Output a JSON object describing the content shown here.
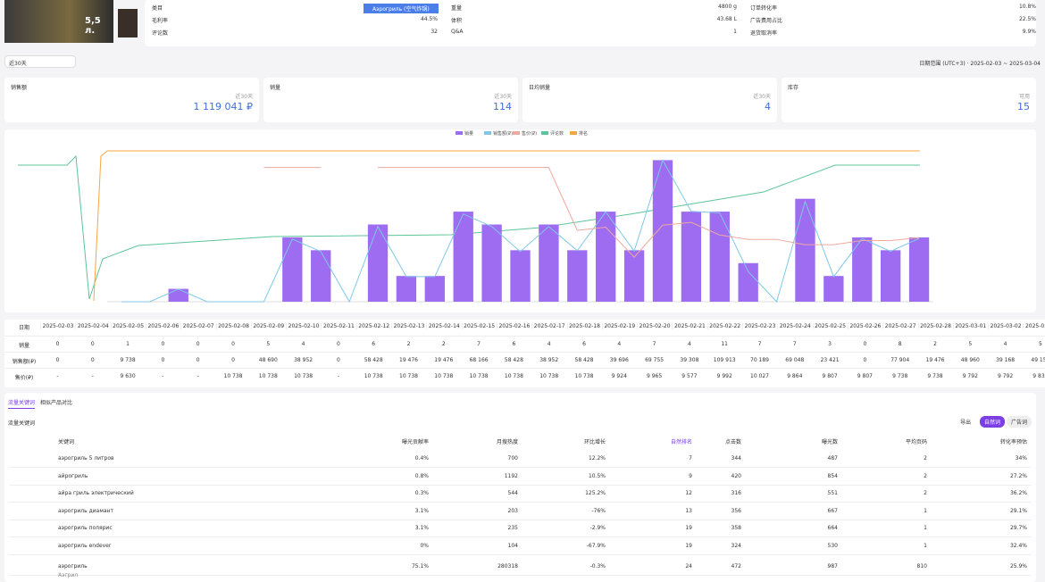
{
  "product": {
    "image_text": "5,5 л.",
    "fields": [
      {
        "label": "类目",
        "value": "Аэрогриль (空气炸锅)"
      },
      {
        "label": "毛利率",
        "value": "44.5%"
      },
      {
        "label": "评论数",
        "value": "32"
      },
      {
        "label": "重量",
        "value": "4800 g"
      },
      {
        "label": "体积",
        "value": "43.68 L"
      },
      {
        "label": "Q&A",
        "value": "1"
      },
      {
        "label": "订单转化率",
        "value": "10.8%"
      },
      {
        "label": "广告费用占比",
        "value": "22.5%"
      },
      {
        "label": "退货取消率",
        "value": "9.9%"
      }
    ]
  },
  "filter": "近30天",
  "date_range": "日期范围 (UTC+3) · 2025-02-03 ~ 2025-03-04",
  "kpis": [
    {
      "label": "销售额",
      "period": "近30天",
      "value": "1 119 041 ₽"
    },
    {
      "label": "销量",
      "period": "近30天",
      "value": "114"
    },
    {
      "label": "日均销量",
      "period": "近30天",
      "value": "4"
    },
    {
      "label": "库存",
      "period": "可用",
      "value": "15"
    }
  ],
  "chart_data": {
    "type": "bar",
    "ylim": [
      0,
      12
    ],
    "y2lim": [
      0,
      120000
    ],
    "y3lim": [
      9000,
      11000
    ],
    "extra_legend": [
      {
        "name": "评论数",
        "color": "#5cc49a"
      },
      {
        "name": "排名",
        "color": "#f5a742"
      }
    ],
    "x": [
      "2025-02-03",
      "2025-02-04",
      "2025-02-05",
      "2025-02-06",
      "2025-02-07",
      "2025-02-08",
      "2025-02-09",
      "2025-02-10",
      "2025-02-11",
      "2025-02-12",
      "2025-02-13",
      "2025-02-14",
      "2025-02-15",
      "2025-02-16",
      "2025-02-17",
      "2025-02-18",
      "2025-02-19",
      "2025-02-20",
      "2025-02-21",
      "2025-02-22",
      "2025-02-23",
      "2025-02-24",
      "2025-02-25",
      "2025-02-26",
      "2025-02-27",
      "2025-02-28",
      "2025-03-01",
      "2025-03-02",
      "2025-03-03"
    ],
    "row_header": "日期",
    "series": [
      {
        "name": "销量",
        "color": "#9d6cf0",
        "values": [
          0,
          0,
          1,
          0,
          0,
          0,
          5,
          4,
          0,
          6,
          2,
          2,
          7,
          6,
          4,
          6,
          4,
          7,
          4,
          11,
          7,
          7,
          3,
          0,
          8,
          2,
          5,
          4,
          5
        ]
      },
      {
        "name": "销售额(₽)",
        "color": "#7fc8e8",
        "axis": "y2",
        "values": [
          0,
          0,
          9738,
          0,
          0,
          0,
          48690,
          38952,
          0,
          58428,
          19476,
          19476,
          68166,
          58428,
          38952,
          58428,
          39696,
          69755,
          39308,
          109913,
          70189,
          69048,
          23421,
          0,
          77904,
          19476,
          48960,
          39168,
          49150
        ],
        "value_labels": [
          "0",
          "0",
          "9 738",
          "0",
          "0",
          "0",
          "48 690",
          "38 952",
          "0",
          "58 428",
          "19 476",
          "19 476",
          "68 166",
          "58 428",
          "38 952",
          "58 428",
          "39 696",
          "69 755",
          "39 308",
          "109 913",
          "70 189",
          "69 048",
          "23 421",
          "0",
          "77 904",
          "19 476",
          "48 960",
          "39 168",
          "49 150"
        ]
      },
      {
        "name": "售价(₽)",
        "color": "#f0a8a0",
        "axis": "y3",
        "values": [
          null,
          null,
          9630,
          null,
          null,
          10738,
          10738,
          10738,
          null,
          10738,
          10738,
          10738,
          10738,
          10738,
          10738,
          10738,
          9924,
          9965,
          9577,
          9992,
          10027,
          9864,
          9807,
          9807,
          9738,
          9738,
          9792,
          9792,
          9830
        ],
        "value_labels": [
          "-",
          "-",
          "9 630",
          "-",
          "-",
          "10 738",
          "10 738",
          "10 738",
          "-",
          "10 738",
          "10 738",
          "10 738",
          "10 738",
          "10 738",
          "10 738",
          "10 738",
          "9 924",
          "9 965",
          "9 577",
          "9 992",
          "10 027",
          "9 864",
          "9 807",
          "9 807",
          "9 738",
          "9 738",
          "9 792",
          "9 792",
          "9 830"
        ]
      }
    ]
  },
  "tabs": [
    "流量关键词",
    "相似产品对比"
  ],
  "section_label": "流量关键词",
  "export": "导出",
  "toggle": [
    "自然词",
    "广告词"
  ],
  "keywords": {
    "columns": [
      "关键词",
      "曝光贡献率",
      "月搜热度",
      "环比增长",
      "自然排名",
      "点击数",
      "曝光数",
      "平均页码",
      "转化率预估"
    ],
    "rows": [
      [
        "аэрогриль 5 литров",
        "0.4%",
        "700",
        "12.2%",
        "7",
        "344",
        "487",
        "2",
        "34%"
      ],
      [
        "айрогриль",
        "0.8%",
        "1192",
        "10.5%",
        "9",
        "420",
        "854",
        "2",
        "27.2%"
      ],
      [
        "айра гриль электрический",
        "0.3%",
        "544",
        "125.2%",
        "12",
        "316",
        "551",
        "2",
        "36.2%"
      ],
      [
        "аэрогриль диамант",
        "3.1%",
        "203",
        "-76%",
        "13",
        "356",
        "667",
        "1",
        "29.1%"
      ],
      [
        "аэрогриль полярис",
        "3.1%",
        "235",
        "-2.9%",
        "19",
        "358",
        "664",
        "1",
        "29.7%"
      ],
      [
        "аэрогриль endever",
        "0%",
        "104",
        "-67.9%",
        "19",
        "324",
        "530",
        "1",
        "32.4%"
      ],
      [
        "аэрогриль",
        "75.1%",
        "280318",
        "-0.3%",
        "24",
        "472",
        "987",
        "810",
        "25.9%"
      ]
    ],
    "row7_sub": "Аэгрил"
  }
}
